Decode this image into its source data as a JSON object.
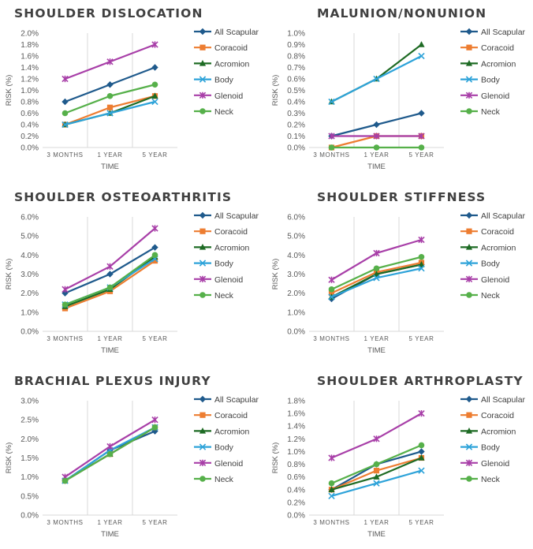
{
  "series_styles": [
    {
      "name": "All Scapular",
      "color": "#1f5a8c",
      "marker": "diamond"
    },
    {
      "name": "Coracoid",
      "color": "#ed7d31",
      "marker": "square"
    },
    {
      "name": "Acromion",
      "color": "#1e6b24",
      "marker": "triangle"
    },
    {
      "name": "Body",
      "color": "#2ea3d9",
      "marker": "xmark"
    },
    {
      "name": "Glenoid",
      "color": "#a83fa8",
      "marker": "star"
    },
    {
      "name": "Neck",
      "color": "#56b04a",
      "marker": "circle"
    }
  ],
  "chart_data": [
    {
      "type": "line",
      "title": "SHOULDER DISLOCATION",
      "categories": [
        "3 MONTHS",
        "1 YEAR",
        "5 YEAR"
      ],
      "xlabel": "TIME",
      "ylabel": "RISK (%)",
      "ylim": [
        0,
        2.0
      ],
      "ystep": 0.2,
      "ydecimals": 1,
      "series": [
        {
          "name": "All Scapular",
          "values": [
            0.8,
            1.1,
            1.4
          ]
        },
        {
          "name": "Coracoid",
          "values": [
            0.4,
            0.7,
            0.9
          ]
        },
        {
          "name": "Acromion",
          "values": [
            0.4,
            0.6,
            0.9
          ]
        },
        {
          "name": "Body",
          "values": [
            0.4,
            0.6,
            0.8
          ]
        },
        {
          "name": "Glenoid",
          "values": [
            1.2,
            1.5,
            1.8
          ]
        },
        {
          "name": "Neck",
          "values": [
            0.6,
            0.9,
            1.1
          ]
        }
      ]
    },
    {
      "type": "line",
      "title": "MALUNION/NONUNION",
      "categories": [
        "3 MONTHS",
        "1 YEAR",
        "5 YEAR"
      ],
      "xlabel": "TIME",
      "ylabel": "RISK (%)",
      "ylim": [
        0,
        1.0
      ],
      "ystep": 0.1,
      "ydecimals": 1,
      "series": [
        {
          "name": "All Scapular",
          "values": [
            0.1,
            0.2,
            0.3
          ]
        },
        {
          "name": "Coracoid",
          "values": [
            0.0,
            0.1,
            0.1
          ]
        },
        {
          "name": "Acromion",
          "values": [
            0.4,
            0.6,
            0.9
          ]
        },
        {
          "name": "Body",
          "values": [
            0.4,
            0.6,
            0.8
          ]
        },
        {
          "name": "Glenoid",
          "values": [
            0.1,
            0.1,
            0.1
          ]
        },
        {
          "name": "Neck",
          "values": [
            0.0,
            0.0,
            0.0
          ]
        }
      ]
    },
    {
      "type": "line",
      "title": "SHOULDER OSTEOARTHRITIS",
      "categories": [
        "3 MONTHS",
        "1 YEAR",
        "5 YEAR"
      ],
      "xlabel": "TIME",
      "ylabel": "RISK (%)",
      "ylim": [
        0,
        6.0
      ],
      "ystep": 1.0,
      "ydecimals": 1,
      "series": [
        {
          "name": "All Scapular",
          "values": [
            2.0,
            3.0,
            4.4
          ]
        },
        {
          "name": "Coracoid",
          "values": [
            1.2,
            2.1,
            3.7
          ]
        },
        {
          "name": "Acromion",
          "values": [
            1.3,
            2.2,
            3.9
          ]
        },
        {
          "name": "Body",
          "values": [
            1.4,
            2.3,
            3.8
          ]
        },
        {
          "name": "Glenoid",
          "values": [
            2.2,
            3.4,
            5.4
          ]
        },
        {
          "name": "Neck",
          "values": [
            1.4,
            2.3,
            4.0
          ]
        }
      ]
    },
    {
      "type": "line",
      "title": "SHOULDER STIFFNESS",
      "categories": [
        "3 MONTHS",
        "1 YEAR",
        "5 YEAR"
      ],
      "xlabel": "TIME",
      "ylabel": "RISK (%)",
      "ylim": [
        0,
        6.0
      ],
      "ystep": 1.0,
      "ydecimals": 1,
      "series": [
        {
          "name": "All Scapular",
          "values": [
            1.7,
            3.0,
            3.5
          ]
        },
        {
          "name": "Coracoid",
          "values": [
            2.0,
            3.1,
            3.6
          ]
        },
        {
          "name": "Acromion",
          "values": [
            1.8,
            3.0,
            3.5
          ]
        },
        {
          "name": "Body",
          "values": [
            1.8,
            2.8,
            3.3
          ]
        },
        {
          "name": "Glenoid",
          "values": [
            2.7,
            4.1,
            4.8
          ]
        },
        {
          "name": "Neck",
          "values": [
            2.2,
            3.3,
            3.9
          ]
        }
      ]
    },
    {
      "type": "line",
      "title": "BRACHIAL PLEXUS INJURY",
      "categories": [
        "3 MONTHS",
        "1 YEAR",
        "5 YEAR"
      ],
      "xlabel": "TIME",
      "ylabel": "RISK (%)",
      "ylim": [
        0,
        3.0
      ],
      "ystep": 0.5,
      "ydecimals": 1,
      "series": [
        {
          "name": "All Scapular",
          "values": [
            0.9,
            1.7,
            2.2
          ]
        },
        {
          "name": "Coracoid",
          "values": [
            0.9,
            1.6,
            2.3
          ]
        },
        {
          "name": "Acromion",
          "values": [
            0.9,
            1.6,
            2.3
          ]
        },
        {
          "name": "Body",
          "values": [
            0.9,
            1.7,
            2.3
          ]
        },
        {
          "name": "Glenoid",
          "values": [
            1.0,
            1.8,
            2.5
          ]
        },
        {
          "name": "Neck",
          "values": [
            0.9,
            1.6,
            2.3
          ]
        }
      ]
    },
    {
      "type": "line",
      "title": "SHOULDER ARTHROPLASTY",
      "categories": [
        "3 MONTHS",
        "1 YEAR",
        "5 YEAR"
      ],
      "xlabel": "TIME",
      "ylabel": "RISK (%)",
      "ylim": [
        0,
        1.8
      ],
      "ystep": 0.2,
      "ydecimals": 1,
      "series": [
        {
          "name": "All Scapular",
          "values": [
            0.4,
            0.8,
            1.0
          ]
        },
        {
          "name": "Coracoid",
          "values": [
            0.4,
            0.7,
            0.9
          ]
        },
        {
          "name": "Acromion",
          "values": [
            0.4,
            0.6,
            0.9
          ]
        },
        {
          "name": "Body",
          "values": [
            0.3,
            0.5,
            0.7
          ]
        },
        {
          "name": "Glenoid",
          "values": [
            0.9,
            1.2,
            1.6
          ]
        },
        {
          "name": "Neck",
          "values": [
            0.5,
            0.8,
            1.1
          ]
        }
      ]
    }
  ]
}
